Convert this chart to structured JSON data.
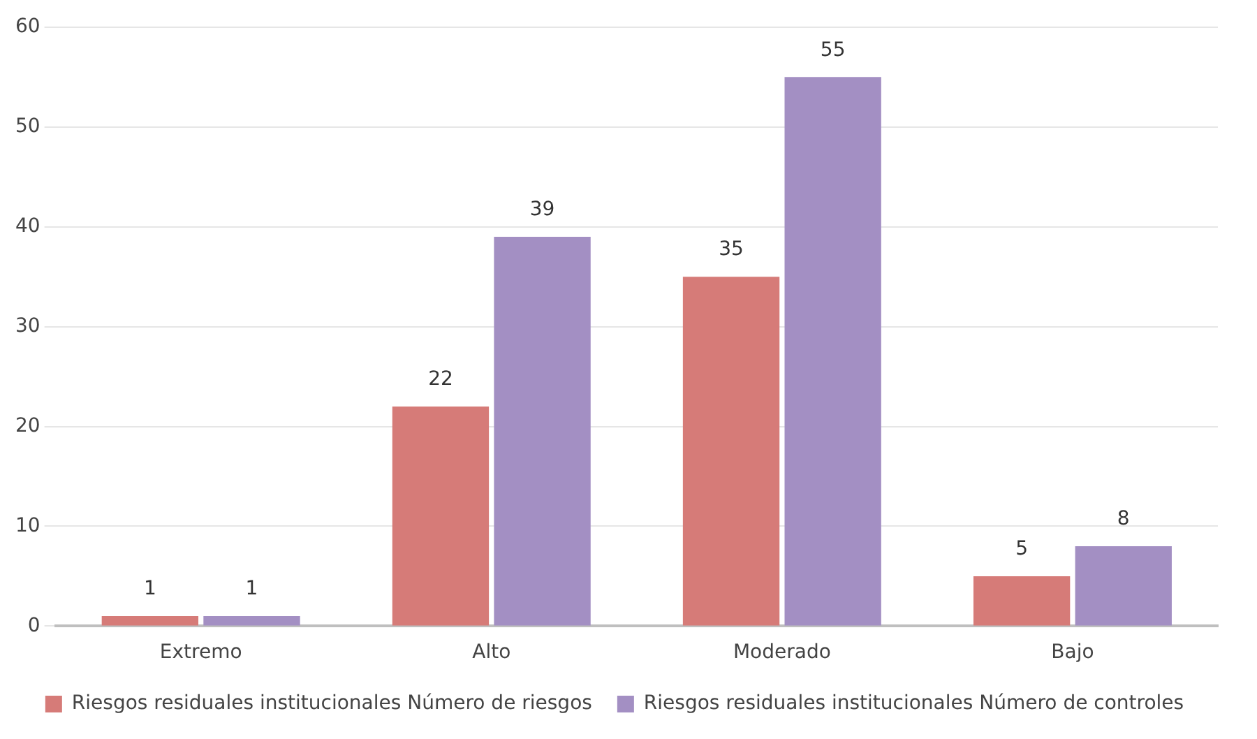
{
  "chart_data": {
    "type": "bar",
    "categories": [
      "Extremo",
      "Alto",
      "Moderado",
      "Bajo"
    ],
    "series": [
      {
        "name": "Riesgos residuales institucionales Número de riesgos",
        "color": "#d67b78",
        "values": [
          1,
          22,
          35,
          5
        ]
      },
      {
        "name": "Riesgos residuales institucionales Número de controles",
        "color": "#a38fc3",
        "values": [
          1,
          39,
          55,
          8
        ]
      }
    ],
    "ylim": [
      0,
      60
    ],
    "yticks": [
      0,
      10,
      20,
      30,
      40,
      50,
      60
    ],
    "grid": "y",
    "legend": "bottom",
    "data_labels": true
  }
}
